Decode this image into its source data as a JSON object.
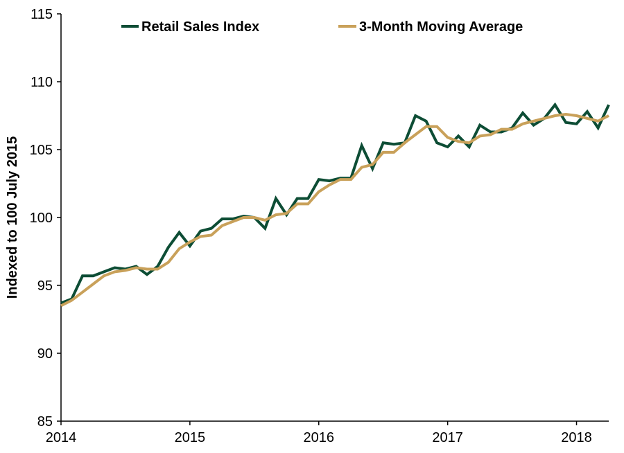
{
  "chart_data": {
    "type": "line",
    "title": "",
    "xlabel": "",
    "ylabel": "Indexed to 100 July 2015",
    "xlim": [
      2014.0,
      2018.25
    ],
    "ylim": [
      85,
      115
    ],
    "y_ticks": [
      85,
      90,
      95,
      100,
      105,
      110,
      115
    ],
    "x_ticks": [
      2014,
      2015,
      2016,
      2017,
      2018
    ],
    "grid": false,
    "legend_position": "top",
    "colors": {
      "retail": "#0d4d35",
      "moving_avg": "#c9a15a"
    },
    "series": [
      {
        "name": "Retail Sales Index",
        "x": [
          2014.0,
          2014.083,
          2014.167,
          2014.25,
          2014.333,
          2014.417,
          2014.5,
          2014.583,
          2014.667,
          2014.75,
          2014.833,
          2014.917,
          2015.0,
          2015.083,
          2015.167,
          2015.25,
          2015.333,
          2015.417,
          2015.5,
          2015.583,
          2015.667,
          2015.75,
          2015.833,
          2015.917,
          2016.0,
          2016.083,
          2016.167,
          2016.25,
          2016.333,
          2016.417,
          2016.5,
          2016.583,
          2016.667,
          2016.75,
          2016.833,
          2016.917,
          2017.0,
          2017.083,
          2017.167,
          2017.25,
          2017.333,
          2017.417,
          2017.5,
          2017.583,
          2017.667,
          2017.75,
          2017.833,
          2017.917,
          2018.0,
          2018.083,
          2018.167,
          2018.25
        ],
        "values": [
          93.7,
          94.0,
          95.7,
          95.7,
          96.0,
          96.3,
          96.2,
          96.4,
          95.8,
          96.4,
          97.8,
          98.9,
          97.9,
          99.0,
          99.2,
          99.9,
          99.9,
          100.1,
          100.0,
          99.2,
          101.4,
          100.2,
          101.4,
          101.4,
          102.8,
          102.7,
          102.9,
          102.9,
          105.3,
          103.6,
          105.5,
          105.4,
          105.5,
          107.5,
          107.1,
          105.5,
          105.2,
          106.0,
          105.2,
          106.8,
          106.3,
          106.3,
          106.6,
          107.7,
          106.8,
          107.3,
          108.3,
          107.0,
          106.9,
          107.8,
          106.6,
          108.3
        ]
      },
      {
        "name": "3-Month Moving Average",
        "x": [
          2014.0,
          2014.083,
          2014.167,
          2014.25,
          2014.333,
          2014.417,
          2014.5,
          2014.583,
          2014.667,
          2014.75,
          2014.833,
          2014.917,
          2015.0,
          2015.083,
          2015.167,
          2015.25,
          2015.333,
          2015.417,
          2015.5,
          2015.583,
          2015.667,
          2015.75,
          2015.833,
          2015.917,
          2016.0,
          2016.083,
          2016.167,
          2016.25,
          2016.333,
          2016.417,
          2016.5,
          2016.583,
          2016.667,
          2016.75,
          2016.833,
          2016.917,
          2017.0,
          2017.083,
          2017.167,
          2017.25,
          2017.333,
          2017.417,
          2017.5,
          2017.583,
          2017.667,
          2017.75,
          2017.833,
          2017.917,
          2018.0,
          2018.083,
          2018.167,
          2018.25
        ],
        "values": [
          93.5,
          93.9,
          94.5,
          95.1,
          95.7,
          96.0,
          96.1,
          96.3,
          96.2,
          96.2,
          96.7,
          97.7,
          98.2,
          98.6,
          98.7,
          99.4,
          99.7,
          100.0,
          100.0,
          99.8,
          100.2,
          100.3,
          101.0,
          101.0,
          101.9,
          102.4,
          102.8,
          102.8,
          103.7,
          103.9,
          104.8,
          104.8,
          105.5,
          106.1,
          106.7,
          106.7,
          105.9,
          105.6,
          105.5,
          106.0,
          106.1,
          106.5,
          106.5,
          106.9,
          107.1,
          107.3,
          107.5,
          107.6,
          107.5,
          107.3,
          107.1,
          107.5
        ]
      }
    ]
  }
}
